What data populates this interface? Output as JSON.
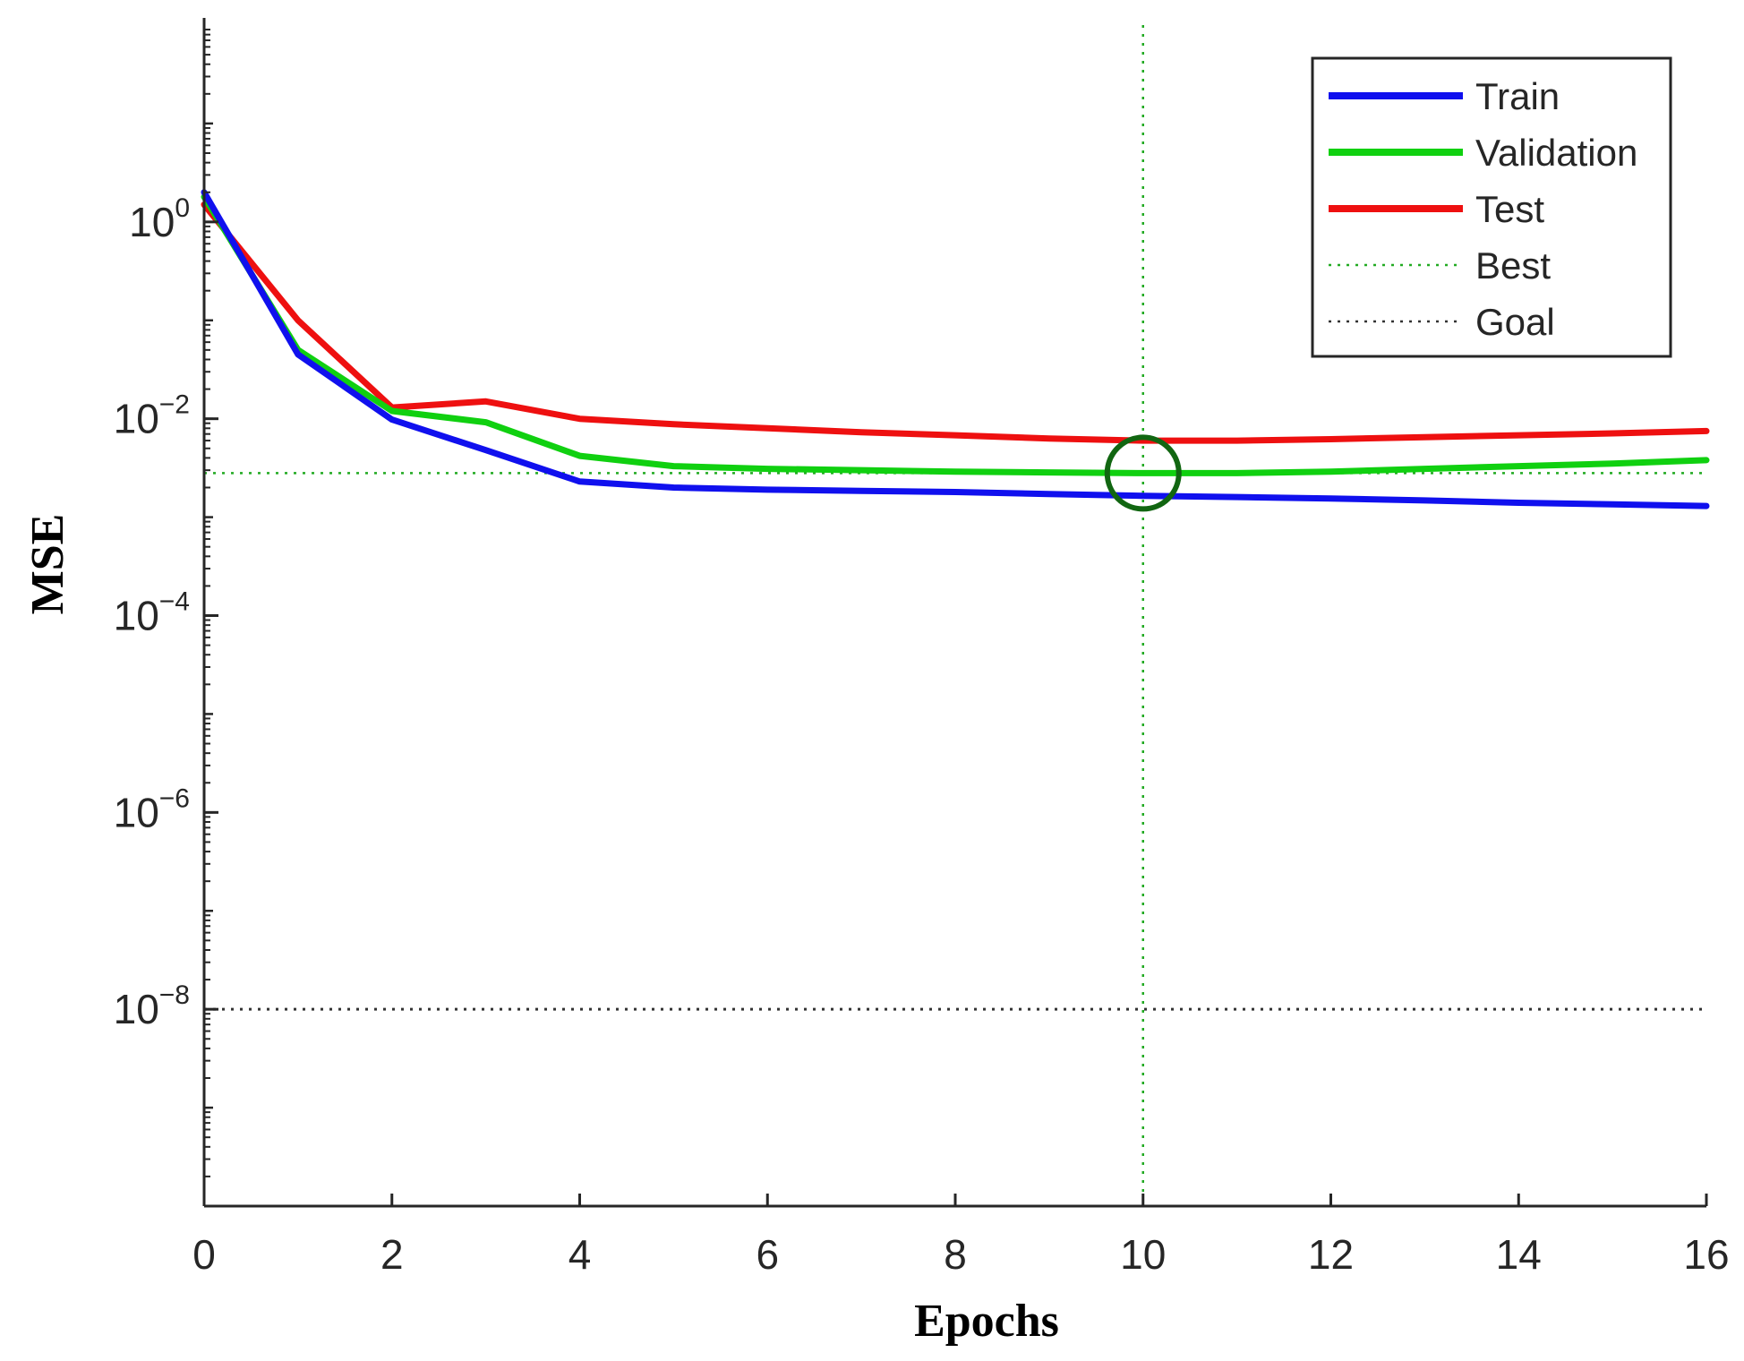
{
  "chart_data": {
    "type": "line",
    "xlabel": "Epochs",
    "ylabel": "MSE",
    "yscale": "log",
    "xlim": [
      0,
      16
    ],
    "ylim": [
      1e-10,
      100
    ],
    "xticks": [
      0,
      2,
      4,
      6,
      8,
      10,
      12,
      14,
      16
    ],
    "xtick_labels": [
      "0",
      "2",
      "4",
      "6",
      "8",
      "10",
      "12",
      "14",
      "16"
    ],
    "yticks": [
      {
        "value": 1,
        "base": "10",
        "exp": "0"
      },
      {
        "value": 0.01,
        "base": "10",
        "exp": "−2"
      },
      {
        "value": 0.0001,
        "base": "10",
        "exp": "−4"
      },
      {
        "value": 1e-06,
        "base": "10",
        "exp": "−6"
      },
      {
        "value": 1e-08,
        "base": "10",
        "exp": "−8"
      }
    ],
    "x": [
      0,
      1,
      2,
      3,
      4,
      5,
      6,
      7,
      8,
      9,
      10,
      11,
      12,
      13,
      14,
      15,
      16
    ],
    "series": [
      {
        "name": "Train",
        "color": "#1010ee",
        "style": "solid",
        "values": [
          2.0,
          0.045,
          0.0098,
          0.0048,
          0.0023,
          0.002,
          0.0019,
          0.00185,
          0.0018,
          0.00172,
          0.00165,
          0.0016,
          0.00155,
          0.00148,
          0.0014,
          0.00135,
          0.0013
        ]
      },
      {
        "name": "Validation",
        "color": "#10d010",
        "style": "solid",
        "values": [
          1.8,
          0.05,
          0.012,
          0.0092,
          0.0042,
          0.0033,
          0.0031,
          0.003,
          0.0029,
          0.00285,
          0.0028,
          0.0028,
          0.0029,
          0.0031,
          0.0033,
          0.0035,
          0.0038
        ]
      },
      {
        "name": "Test",
        "color": "#ee1010",
        "style": "solid",
        "values": [
          1.5,
          0.1,
          0.013,
          0.015,
          0.01,
          0.0088,
          0.008,
          0.0073,
          0.0068,
          0.0063,
          0.006,
          0.006,
          0.0062,
          0.0065,
          0.0068,
          0.0071,
          0.0075
        ]
      }
    ],
    "best": {
      "label": "Best",
      "epoch": 10,
      "value": 0.0028,
      "color": "#22aa22",
      "style": "dotted"
    },
    "goal": {
      "label": "Goal",
      "value": 1e-08,
      "color": "#333333",
      "style": "dotted"
    },
    "legend": {
      "placement": "top-right",
      "entries": [
        {
          "label": "Train",
          "color": "#1010ee",
          "style": "solid"
        },
        {
          "label": "Validation",
          "color": "#10d010",
          "style": "solid"
        },
        {
          "label": "Test",
          "color": "#ee1010",
          "style": "solid"
        },
        {
          "label": "Best",
          "color": "#22aa22",
          "style": "dotted"
        },
        {
          "label": "Goal",
          "color": "#333333",
          "style": "dotted"
        }
      ]
    }
  }
}
